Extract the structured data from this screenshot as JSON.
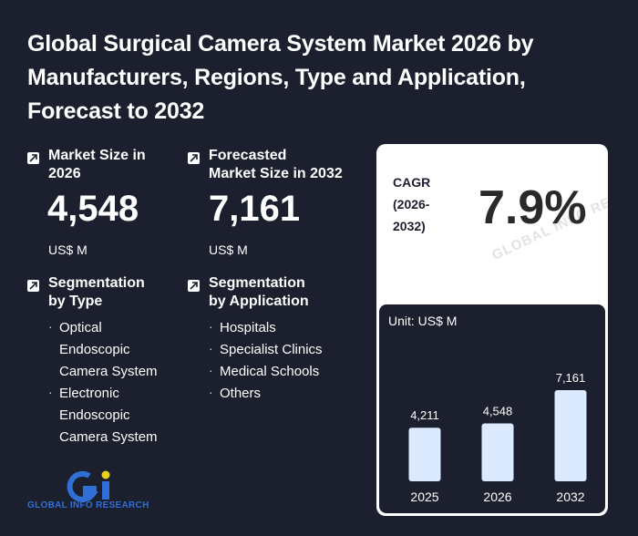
{
  "title": "Global Surgical Camera System Market 2026 by Manufacturers, Regions, Type and Application, Forecast to 2032",
  "market_size": {
    "label_line1": "Market Size in",
    "label_line2": "2026",
    "value": "4,548",
    "unit": "US$ M"
  },
  "forecast_size": {
    "label_line1": "Forecasted",
    "label_line2": "Market Size in 2032",
    "value": "7,161",
    "unit": "US$ M"
  },
  "segmentation_type": {
    "label_line1": "Segmentation",
    "label_line2": "by Type",
    "items": [
      {
        "text": "Optical",
        "bullet": true
      },
      {
        "text": "Endoscopic",
        "bullet": false
      },
      {
        "text": "Camera System",
        "bullet": false
      },
      {
        "text": "Electronic",
        "bullet": true
      },
      {
        "text": "Endoscopic",
        "bullet": false
      },
      {
        "text": "Camera System",
        "bullet": false
      }
    ]
  },
  "segmentation_application": {
    "label_line1": "Segmentation",
    "label_line2": "by Application",
    "items": [
      "Hospitals",
      "Specialist Clinics",
      "Medical Schools",
      "Others"
    ]
  },
  "cagr": {
    "label_line1": "CAGR",
    "label_line2": "(2026-",
    "label_line3": "2032)",
    "value": "7.9%"
  },
  "watermark": "GLOBAL INFO RESEARCH",
  "logo_text": "GLOBAL INFO RESEARCH",
  "colors": {
    "background": "#1c1f2e",
    "bar": "#dbeafe",
    "logo_blue": "#2f6fd6",
    "logo_yellow": "#e8d21d"
  },
  "chart_data": {
    "type": "bar",
    "unit_label": "Unit: US$ M",
    "categories": [
      "2025",
      "2026",
      "2032"
    ],
    "values": [
      4211,
      4548,
      7161
    ],
    "value_labels": [
      "4,211",
      "4,548",
      "7,161"
    ]
  }
}
